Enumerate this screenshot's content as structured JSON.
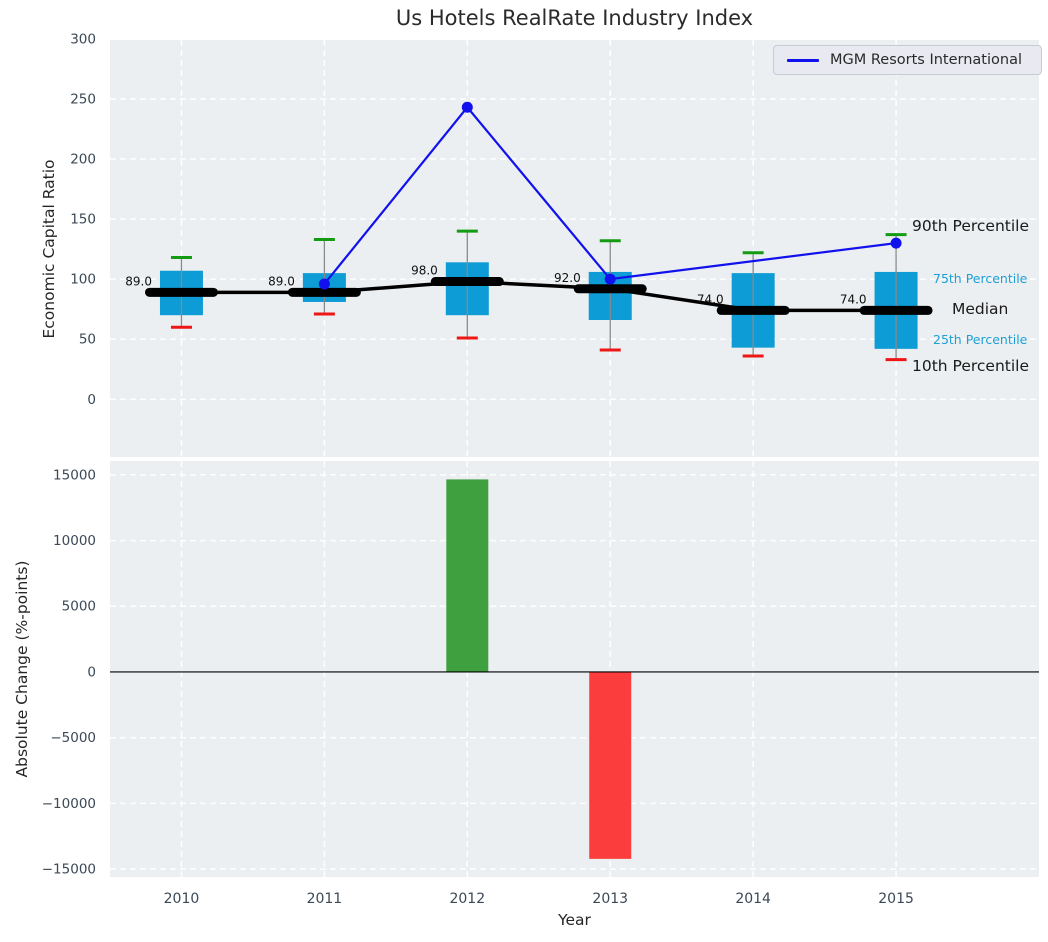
{
  "figure": {
    "title": "Us Hotels RealRate Industry Index"
  },
  "legend": {
    "label": "MGM Resorts International"
  },
  "annotations": {
    "p90": "90th Percentile",
    "p75": "75th Percentile",
    "median": "Median",
    "p25": "25th Percentile",
    "p10": "10th Percentile"
  },
  "colors": {
    "axes_bg": "#eceff1",
    "grid": "#ffffff",
    "box_fill": "#0d9cd5",
    "cap_p90": "#149b14",
    "cap_p10": "#ee1515",
    "whisker": "#8a8a8a",
    "median": "#000000",
    "line": "#1111ee",
    "bar_positive": "#3fa03f",
    "bar_negative": "#fb3d3d",
    "tick": "#3b4856",
    "value_label": "#111111",
    "annotation_dark": "#1a1a1a",
    "annotation_accent": "#1d9fd6",
    "title": "#2b2b2b",
    "zero_line": "#000000"
  },
  "chart_data": [
    {
      "type": "box",
      "title": "Us Hotels RealRate Industry Index",
      "ylabel": "Economic Capital Ratio",
      "xlabel": "Year",
      "grid": true,
      "legend_position": "upper right",
      "categories": [
        "2010",
        "2011",
        "2012",
        "2013",
        "2014",
        "2015"
      ],
      "xlim": [
        2009.5,
        2016.0
      ],
      "ylim": [
        -48,
        299
      ],
      "yticks": [
        0,
        50,
        100,
        150,
        200,
        250,
        300
      ],
      "ytick_labels": [
        "0",
        "50",
        "100",
        "150",
        "200",
        "250",
        "300"
      ],
      "boxes": [
        {
          "year": "2010",
          "p10": 60,
          "p25": 70,
          "median": 89,
          "p75": 107,
          "p90": 118,
          "label": "89.0"
        },
        {
          "year": "2011",
          "p10": 71,
          "p25": 81,
          "median": 89,
          "p75": 105,
          "p90": 133,
          "label": "89.0"
        },
        {
          "year": "2012",
          "p10": 51,
          "p25": 70,
          "median": 98,
          "p75": 114,
          "p90": 140,
          "label": "98.0"
        },
        {
          "year": "2013",
          "p10": 41,
          "p25": 66,
          "median": 92,
          "p75": 106,
          "p90": 132,
          "label": "92.0"
        },
        {
          "year": "2014",
          "p10": 36,
          "p25": 43,
          "median": 74,
          "p75": 105,
          "p90": 122,
          "label": "74.0"
        },
        {
          "year": "2015",
          "p10": 33,
          "p25": 42,
          "median": 74,
          "p75": 106,
          "p90": 137,
          "label": "74.0"
        }
      ],
      "line_series": {
        "name": "MGM Resorts International",
        "points": [
          {
            "x": 2011,
            "y": 96
          },
          {
            "x": 2012,
            "y": 243
          },
          {
            "x": 2013,
            "y": 100
          },
          {
            "x": 2015,
            "y": 130
          }
        ]
      }
    },
    {
      "type": "bar",
      "ylabel": "Absolute Change (%-points)",
      "xlabel": "Year",
      "grid": true,
      "categories": [
        "2010",
        "2011",
        "2012",
        "2013",
        "2014",
        "2015"
      ],
      "ylim": [
        -15600,
        16050
      ],
      "yticks": [
        -15000,
        -10000,
        -5000,
        0,
        5000,
        10000,
        15000
      ],
      "ytick_labels": [
        "−15000",
        "−10000",
        "−5000",
        "0",
        "5000",
        "10000",
        "15000"
      ],
      "bars": [
        {
          "year": "2012",
          "value": 14650
        },
        {
          "year": "2013",
          "value": -14220
        }
      ]
    }
  ]
}
